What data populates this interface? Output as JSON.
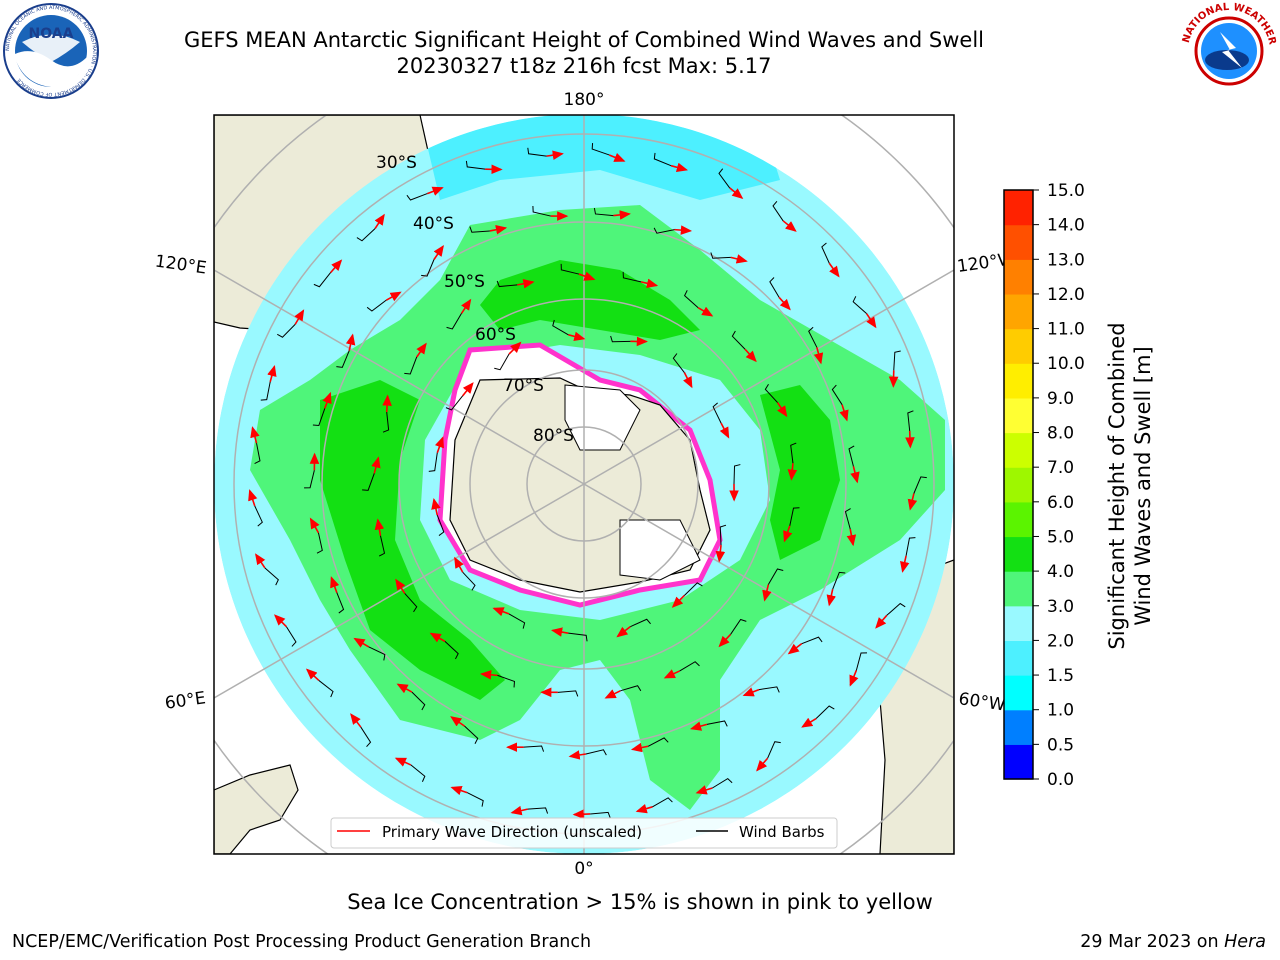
{
  "header": {
    "title_line1": "GEFS MEAN Antarctic Significant Height of Combined Wind Waves and Swell",
    "title_line2": "20230327 t18z 216h fcst   Max: 5.17",
    "noaa_logo_text": "NOAA",
    "noaa_ring_text": "NATIONAL OCEANIC AND ATMOSPHERIC ADMINISTRATION · U.S. DEPARTMENT OF COMMERCE",
    "nws_ring_text": "NATIONAL WEATHER SERVICE"
  },
  "map": {
    "projection": "south-polar-stereographic",
    "longitude_labels": {
      "top": "180°",
      "bottom": "0°",
      "upper_left": "120°E",
      "lower_left": "60°E",
      "upper_right": "120°W",
      "lower_right": "60°W"
    },
    "latitude_labels": [
      "30°S",
      "40°S",
      "50°S",
      "60°S",
      "70°S",
      "80°S"
    ],
    "legend": {
      "wave_label": "Primary Wave Direction (unscaled)",
      "wave_color": "#ff0000",
      "barb_label": "Wind Barbs",
      "barb_color": "#000000"
    },
    "colors": {
      "land": "#ecebd8",
      "ice_free_antarctica": "#ffffff",
      "band_1_5_2_0": "#4df0ff",
      "band_2_0_3_0": "#99f9ff",
      "band_3_0_4_0": "#4ff57a",
      "band_4_0_5_0": "#13e013",
      "sea_ice_edge": "#ff33cc"
    }
  },
  "colorbar": {
    "label_line1": "Significant Height of Combined",
    "label_line2": "Wind Waves and Swell [m]",
    "ticks": [
      "0.0",
      "0.5",
      "1.0",
      "1.5",
      "2.0",
      "3.0",
      "4.0",
      "5.0",
      "6.0",
      "7.0",
      "8.0",
      "9.0",
      "10.0",
      "11.0",
      "12.0",
      "13.0",
      "14.0",
      "15.0"
    ],
    "colors": [
      "#0000ff",
      "#007fff",
      "#00ffff",
      "#4df0ff",
      "#99f9ff",
      "#4ff57a",
      "#13e013",
      "#5bf400",
      "#9ef700",
      "#ccff00",
      "#ffff33",
      "#ffee00",
      "#ffcc00",
      "#ffa500",
      "#ff8000",
      "#ff5000",
      "#ff2200"
    ]
  },
  "caption": "Sea Ice Concentration > 15% is shown in pink to yellow",
  "footer": {
    "left": "NCEP/EMC/Verification Post Processing Product Generation Branch",
    "right_prefix": "29 Mar 2023 on ",
    "right_host": "Hera"
  }
}
